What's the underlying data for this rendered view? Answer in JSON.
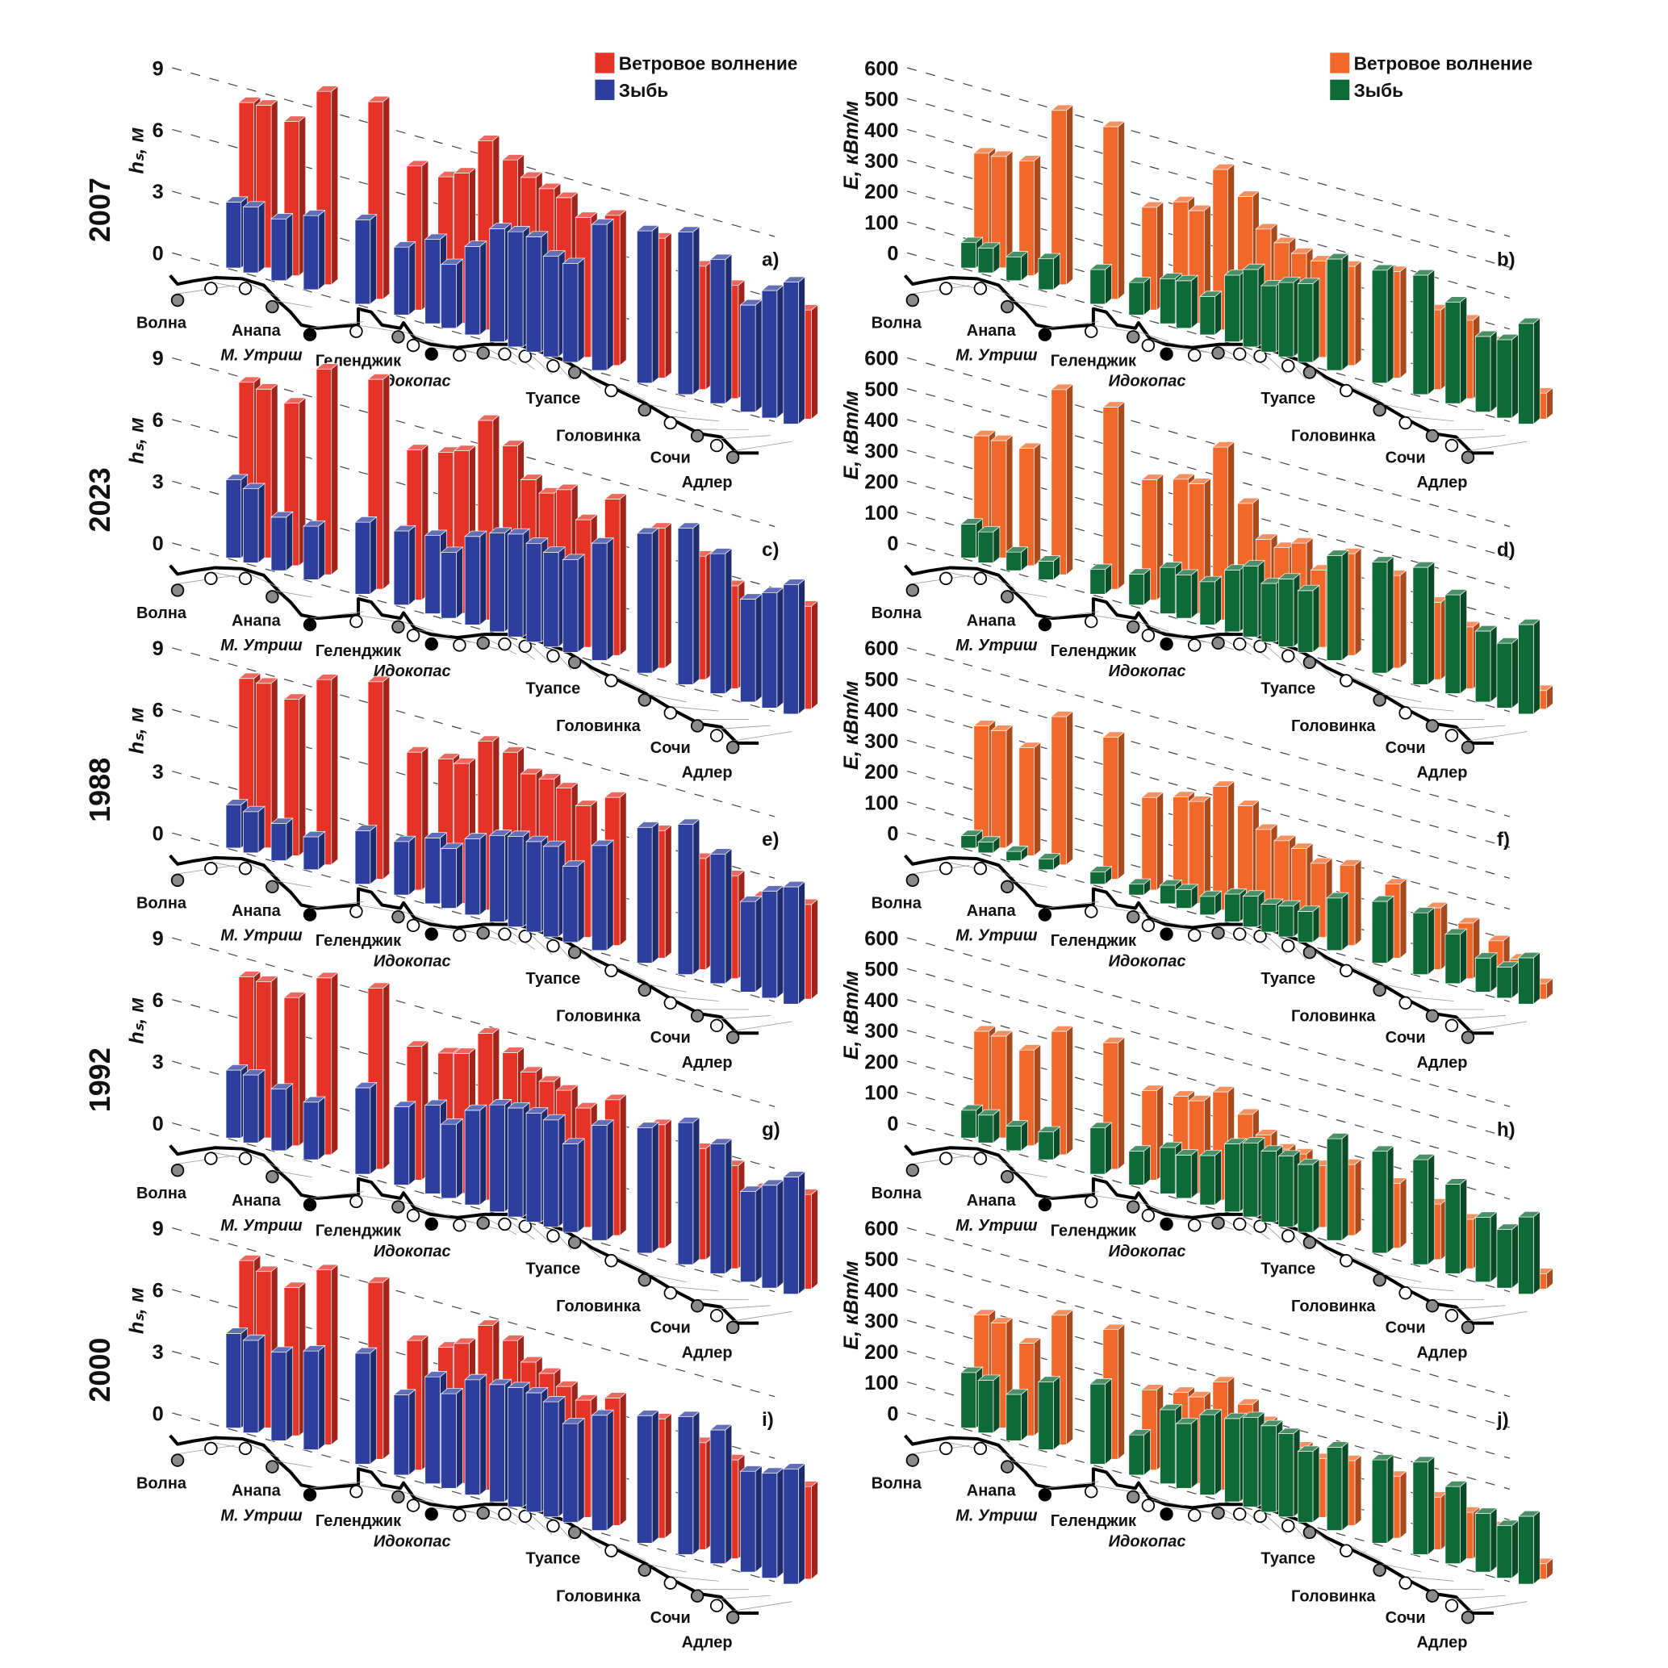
{
  "colors": {
    "wind_left": "#e53427",
    "swell_left": "#2e3e9c",
    "wind_right": "#f0692a",
    "swell_right": "#0e6a36",
    "station_gray": "#8a8a8a",
    "station_black": "#000000",
    "station_open": "#ffffff"
  },
  "legend_left": {
    "wind": "Ветровое волнение",
    "swell": "Зыбь"
  },
  "legend_right": {
    "wind": "Ветровое волнение",
    "swell": "Зыбь"
  },
  "map_labels": [
    {
      "text": "Волна",
      "italic": false
    },
    {
      "text": "Анапа",
      "italic": false
    },
    {
      "text": "М. Утриш",
      "italic": true
    },
    {
      "text": "Геленджик",
      "italic": false
    },
    {
      "text": "Идокопас",
      "italic": true
    },
    {
      "text": "Туапсе",
      "italic": false
    },
    {
      "text": "Головинка",
      "italic": false
    },
    {
      "text": "Сочи",
      "italic": false
    },
    {
      "text": "Адлер",
      "italic": false
    }
  ],
  "station_markers": [
    "gray",
    "open",
    "open",
    "gray",
    "black",
    "open",
    "gray",
    "open",
    "black",
    "open",
    "gray",
    "open",
    "open",
    "open",
    "gray",
    "open",
    "gray",
    "open",
    "gray",
    "open",
    "gray"
  ],
  "chart_data": [
    {
      "type": "bar",
      "style": "3d",
      "panel": "a)",
      "year": "2007",
      "ylabel": "hₛ, м",
      "yticks": [
        0,
        3,
        6,
        9
      ],
      "ylim": [
        0,
        9
      ],
      "grid": true,
      "side": "left",
      "series": [
        {
          "name": "Ветровое волнение",
          "values": [
            7.8,
            7.9,
            7.5,
            9.4,
            9.6,
            7.0,
            6.9,
            7.3,
            9.2,
            8.6,
            8.0,
            7.7,
            7.5,
            6.8,
            7.3,
            6.8,
            6.0,
            5.5,
            5.0,
            4.8,
            5.3
          ]
        },
        {
          "name": "Зыбь",
          "values": [
            3.2,
            3.2,
            3.0,
            3.6,
            4.1,
            3.3,
            4.1,
            3.1,
            4.3,
            5.5,
            5.6,
            5.6,
            4.9,
            4.8,
            7.1,
            7.4,
            7.9,
            7.0,
            5.2,
            6.2,
            6.9
          ]
        }
      ]
    },
    {
      "type": "bar",
      "style": "3d",
      "panel": "b)",
      "year": "2007",
      "ylabel": "E, кВт/м",
      "yticks": [
        0,
        100,
        200,
        300,
        400,
        500,
        600
      ],
      "ylim": [
        0,
        600
      ],
      "grid": true,
      "side": "right",
      "series": [
        {
          "name": "Ветровое волнение",
          "values": [
            356,
            361,
            372,
            565,
            559,
            333,
            379,
            365,
            520,
            455,
            366,
            338,
            319,
            312,
            321,
            345,
            258,
            254,
            211,
            161,
            84
          ]
        },
        {
          "name": "Зыбь",
          "values": [
            82,
            80,
            77,
            100,
            112,
            105,
            146,
            154,
            124,
            216,
            251,
            215,
            241,
            255,
            361,
            366,
            387,
            329,
            245,
            254,
            326
          ]
        }
      ]
    },
    {
      "type": "bar",
      "style": "3d",
      "panel": "c)",
      "year": "2023",
      "ylabel": "hₛ, м",
      "yticks": [
        0,
        3,
        6,
        9
      ],
      "ylim": [
        0,
        9
      ],
      "grid": true,
      "side": "left",
      "series": [
        {
          "name": "Ветровое волнение",
          "values": [
            8.3,
            8.2,
            7.9,
            10.0,
            10.2,
            7.3,
            7.6,
            7.9,
            9.7,
            8.8,
            7.4,
            7.0,
            7.4,
            6.2,
            7.6,
            6.8,
            6.0,
            5.0,
            4.7,
            4.5,
            5.0
          ]
        },
        {
          "name": "Зыбь",
          "values": [
            3.8,
            3.6,
            2.6,
            2.6,
            3.5,
            3.6,
            3.8,
            3.2,
            4.3,
            4.8,
            5.0,
            4.8,
            4.6,
            4.5,
            5.7,
            6.8,
            7.6,
            6.8,
            5.0,
            5.6,
            6.3
          ]
        }
      ]
    },
    {
      "type": "bar",
      "style": "3d",
      "panel": "d)",
      "year": "2023",
      "ylabel": "E, кВт/м",
      "yticks": [
        0,
        100,
        200,
        300,
        400,
        500,
        600
      ],
      "ylim": [
        0,
        600
      ],
      "grid": true,
      "side": "right",
      "series": [
        {
          "name": "Ветровое волнение",
          "values": [
            380,
            380,
            380,
            600,
            590,
            390,
            420,
            420,
            560,
            400,
            300,
            290,
            320,
            250,
            330,
            300,
            250,
            200,
            150,
            120,
            60
          ]
        },
        {
          "name": "Зыбь",
          "values": [
            110,
            100,
            60,
            60,
            80,
            100,
            150,
            140,
            140,
            200,
            230,
            190,
            220,
            200,
            340,
            360,
            380,
            320,
            230,
            210,
            290
          ]
        }
      ]
    },
    {
      "type": "bar",
      "style": "3d",
      "panel": "e)",
      "year": "1988",
      "ylabel": "hₛ, м",
      "yticks": [
        0,
        3,
        6,
        9
      ],
      "ylim": [
        0,
        9
      ],
      "grid": true,
      "side": "left",
      "series": [
        {
          "name": "Ветровое волнение",
          "values": [
            8.0,
            8.0,
            7.6,
            9.0,
            9.6,
            6.7,
            6.8,
            6.8,
            8.2,
            8.0,
            7.2,
            7.2,
            7.0,
            6.4,
            7.2,
            6.2,
            5.4,
            5.0,
            4.4,
            4.2,
            4.6
          ]
        },
        {
          "name": "Зыбь",
          "values": [
            2.1,
            2.0,
            1.8,
            1.6,
            2.6,
            2.6,
            3.2,
            2.9,
            3.7,
            4.2,
            4.4,
            4.4,
            4.4,
            3.7,
            5.1,
            6.6,
            7.3,
            6.3,
            4.4,
            5.2,
            5.7
          ]
        }
      ]
    },
    {
      "type": "bar",
      "style": "3d",
      "panel": "f)",
      "year": "1988",
      "ylabel": "E, кВт/м",
      "yticks": [
        0,
        100,
        200,
        300,
        400,
        500,
        600
      ],
      "ylim": [
        0,
        600
      ],
      "grid": true,
      "side": "right",
      "series": [
        {
          "name": "Ветровое волнение",
          "values": [
            380,
            380,
            350,
            480,
            460,
            300,
            330,
            330,
            400,
            360,
            300,
            280,
            270,
            240,
            260,
            240,
            200,
            180,
            150,
            110,
            50
          ]
        },
        {
          "name": "Зыбь",
          "values": [
            40,
            35,
            30,
            35,
            40,
            35,
            60,
            60,
            60,
            90,
            100,
            90,
            100,
            100,
            170,
            200,
            200,
            160,
            110,
            100,
            150
          ]
        }
      ]
    },
    {
      "type": "bar",
      "style": "3d",
      "panel": "g)",
      "year": "1992",
      "ylabel": "hₛ, м",
      "yticks": [
        0,
        3,
        6,
        9
      ],
      "ylim": [
        0,
        9
      ],
      "grid": true,
      "side": "left",
      "series": [
        {
          "name": "Ветровое волнение",
          "values": [
            7.6,
            7.6,
            7.2,
            8.6,
            8.8,
            6.5,
            6.6,
            6.8,
            8.1,
            7.5,
            6.8,
            6.6,
            6.4,
            5.8,
            6.6,
            6.0,
            5.4,
            5.0,
            4.3,
            4.0,
            4.6
          ]
        },
        {
          "name": "Зыбь",
          "values": [
            3.3,
            3.3,
            3.0,
            2.8,
            4.2,
            3.8,
            4.3,
            3.6,
            4.6,
            5.2,
            5.3,
            5.3,
            5.2,
            4.3,
            5.6,
            6.1,
            6.9,
            6.3,
            4.4,
            5.0,
            5.7
          ]
        }
      ]
    },
    {
      "type": "bar",
      "style": "3d",
      "panel": "h)",
      "year": "1992",
      "ylabel": "E, кВт/м",
      "yticks": [
        0,
        100,
        200,
        300,
        400,
        500,
        600
      ],
      "ylim": [
        0,
        600
      ],
      "grid": true,
      "side": "right",
      "series": [
        {
          "name": "Ветровое волнение",
          "values": [
            330,
            330,
            310,
            400,
            410,
            290,
            300,
            300,
            350,
            300,
            250,
            220,
            220,
            200,
            230,
            210,
            180,
            160,
            140,
            100,
            50
          ]
        },
        {
          "name": "Зыбь",
          "values": [
            90,
            90,
            80,
            90,
            150,
            110,
            150,
            140,
            160,
            220,
            240,
            230,
            230,
            220,
            330,
            330,
            340,
            290,
            210,
            190,
            250
          ]
        }
      ]
    },
    {
      "type": "bar",
      "style": "3d",
      "panel": "i)",
      "year": "2000",
      "ylabel": "hₛ, м",
      "yticks": [
        0,
        3,
        6,
        9
      ],
      "ylim": [
        0,
        9
      ],
      "grid": true,
      "side": "left",
      "series": [
        {
          "name": "Ветровое волнение",
          "values": [
            7.9,
            7.6,
            7.2,
            8.5,
            8.6,
            6.3,
            6.4,
            6.8,
            8.0,
            7.6,
            6.8,
            6.5,
            6.1,
            5.7,
            6.2,
            5.8,
            5.2,
            4.8,
            4.3,
            4.0,
            4.5
          ]
        },
        {
          "name": "Зыбь",
          "values": [
            4.6,
            4.5,
            4.3,
            4.8,
            5.4,
            3.9,
            5.2,
            4.6,
            5.6,
            5.7,
            5.8,
            5.8,
            5.6,
            4.8,
            5.6,
            6.2,
            6.7,
            6.5,
            4.9,
            5.1,
            5.6
          ]
        }
      ]
    },
    {
      "type": "bar",
      "style": "3d",
      "panel": "j)",
      "year": "2000",
      "ylabel": "E, кВт/м",
      "yticks": [
        0,
        100,
        200,
        300,
        400,
        500,
        600
      ],
      "ylim": [
        0,
        600
      ],
      "grid": true,
      "side": "right",
      "series": [
        {
          "name": "Ветровое волнение",
          "values": [
            350,
            340,
            300,
            420,
            420,
            260,
            280,
            280,
            350,
            300,
            260,
            220,
            210,
            190,
            210,
            200,
            170,
            150,
            130,
            90,
            50
          ]
        },
        {
          "name": "Зыбь",
          "values": [
            180,
            170,
            150,
            220,
            260,
            130,
            240,
            210,
            260,
            270,
            290,
            280,
            270,
            230,
            270,
            270,
            300,
            250,
            190,
            170,
            220
          ]
        }
      ]
    }
  ]
}
